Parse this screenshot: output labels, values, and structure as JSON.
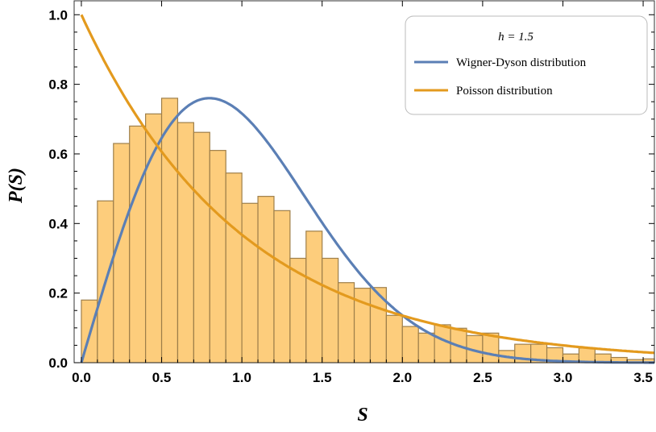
{
  "chart_data": {
    "type": "bar",
    "subtype": "histogram with overlaid curves",
    "xlabel": "S",
    "ylabel": "P(S)",
    "xlim": [
      -0.045,
      3.57
    ],
    "ylim": [
      0,
      1.04
    ],
    "grid": false,
    "x_ticks": [
      "0.0",
      "0.5",
      "1.0",
      "1.5",
      "2.0",
      "2.5",
      "3.0",
      "3.5"
    ],
    "y_ticks": [
      "0.0",
      "0.2",
      "0.4",
      "0.6",
      "0.8",
      "1.0"
    ],
    "histogram": {
      "bin_width": 0.1,
      "bin_starts": [
        0.0,
        0.1,
        0.2,
        0.3,
        0.4,
        0.5,
        0.6,
        0.7,
        0.8,
        0.9,
        1.0,
        1.1,
        1.2,
        1.3,
        1.4,
        1.5,
        1.6,
        1.7,
        1.8,
        1.9,
        2.0,
        2.1,
        2.2,
        2.3,
        2.4,
        2.5,
        2.6,
        2.7,
        2.8,
        2.9,
        3.0,
        3.1,
        3.2,
        3.3,
        3.4,
        3.5
      ],
      "values": [
        0.18,
        0.465,
        0.63,
        0.68,
        0.715,
        0.76,
        0.69,
        0.662,
        0.61,
        0.545,
        0.458,
        0.478,
        0.437,
        0.3,
        0.378,
        0.3,
        0.23,
        0.214,
        0.216,
        0.136,
        0.104,
        0.085,
        0.109,
        0.099,
        0.078,
        0.085,
        0.035,
        0.053,
        0.053,
        0.043,
        0.025,
        0.042,
        0.025,
        0.015,
        0.009,
        0.011
      ],
      "color": "#fdcd7c",
      "edge_color": "#9e7f4a"
    },
    "series": [
      {
        "name": "Wigner-Dyson distribution",
        "color": "#5b7fb5",
        "function": "(pi/2) S exp(-pi S^2/4)"
      },
      {
        "name": "Poisson distribution",
        "color": "#e39a1e",
        "function": "exp(-S)"
      }
    ],
    "legend": {
      "title": "h = 1.5",
      "placement": "top-right"
    }
  }
}
